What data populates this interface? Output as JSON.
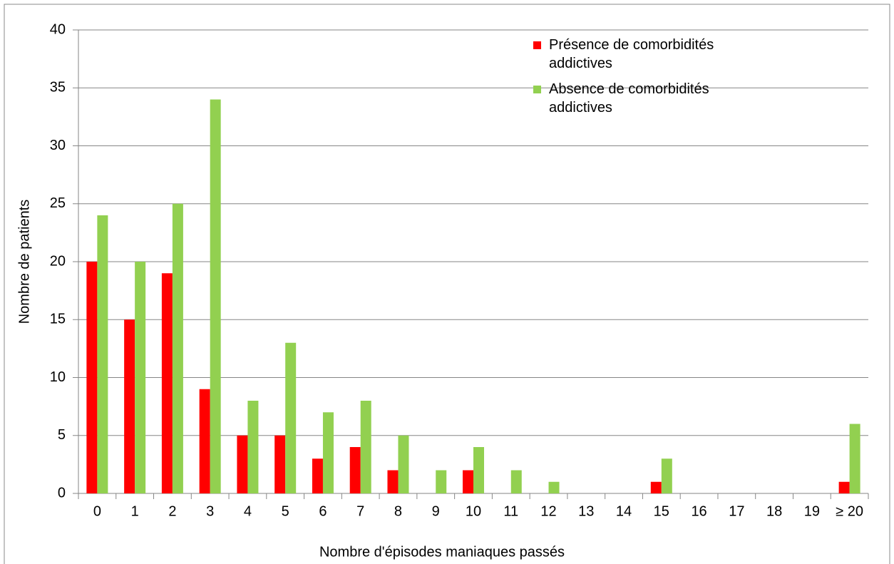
{
  "chart_data": {
    "type": "bar",
    "xlabel": "Nombre d'épisodes maniaques passés",
    "ylabel": "Nombre de patients",
    "categories": [
      "0",
      "1",
      "2",
      "3",
      "4",
      "5",
      "6",
      "7",
      "8",
      "9",
      "10",
      "11",
      "12",
      "13",
      "14",
      "15",
      "16",
      "17",
      "18",
      "19",
      "≥ 20"
    ],
    "series": [
      {
        "name": "Présence de comorbidités addictives",
        "color": "#ff0000",
        "values": [
          20,
          15,
          19,
          9,
          5,
          5,
          3,
          4,
          2,
          0,
          2,
          0,
          0,
          0,
          0,
          1,
          0,
          0,
          0,
          0,
          1
        ]
      },
      {
        "name": "Absence de comorbidités addictives",
        "color": "#92d050",
        "values": [
          24,
          20,
          25,
          34,
          8,
          13,
          7,
          8,
          5,
          2,
          4,
          2,
          1,
          0,
          0,
          3,
          0,
          0,
          0,
          0,
          6
        ]
      }
    ],
    "ylim": [
      0,
      40
    ],
    "yticks": [
      0,
      5,
      10,
      15,
      20,
      25,
      30,
      35,
      40
    ],
    "grid": true,
    "legend": "upper right"
  }
}
